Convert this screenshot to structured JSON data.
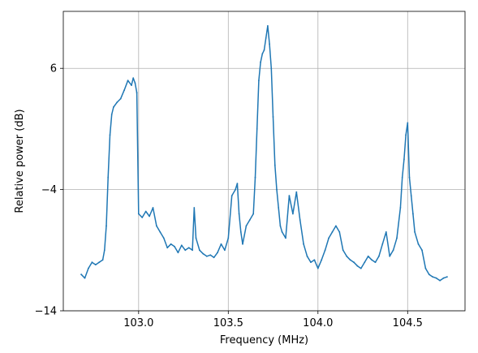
{
  "chart_data": {
    "type": "line",
    "title": "",
    "xlabel": "Frequency (MHz)",
    "ylabel": "Relative power (dB)",
    "xlim": [
      102.58,
      104.82
    ],
    "ylim": [
      -14,
      10.7
    ],
    "xticks": [
      103.0,
      103.5,
      104.0,
      104.5
    ],
    "xtick_labels": [
      "103.0",
      "103.5",
      "104.0",
      "104.5"
    ],
    "yticks": [
      -14,
      -4,
      6
    ],
    "ytick_labels": [
      "−14",
      "−4",
      "6"
    ],
    "grid": true,
    "series": [
      {
        "color": "#1f77b4",
        "x": [
          102.68,
          102.7,
          102.72,
          102.74,
          102.76,
          102.78,
          102.8,
          102.81,
          102.82,
          102.83,
          102.84,
          102.85,
          102.86,
          102.88,
          102.9,
          102.92,
          102.94,
          102.96,
          102.97,
          102.98,
          102.99,
          103.0,
          103.02,
          103.04,
          103.06,
          103.08,
          103.1,
          103.12,
          103.14,
          103.16,
          103.18,
          103.2,
          103.22,
          103.24,
          103.26,
          103.28,
          103.3,
          103.31,
          103.32,
          103.34,
          103.36,
          103.38,
          103.4,
          103.42,
          103.44,
          103.46,
          103.48,
          103.5,
          103.52,
          103.54,
          103.55,
          103.56,
          103.57,
          103.58,
          103.6,
          103.62,
          103.64,
          103.65,
          103.66,
          103.67,
          103.68,
          103.69,
          103.7,
          103.71,
          103.72,
          103.73,
          103.74,
          103.75,
          103.76,
          103.77,
          103.78,
          103.79,
          103.8,
          103.82,
          103.84,
          103.86,
          103.88,
          103.9,
          103.92,
          103.94,
          103.96,
          103.98,
          104.0,
          104.02,
          104.04,
          104.06,
          104.08,
          104.1,
          104.12,
          104.14,
          104.16,
          104.18,
          104.2,
          104.22,
          104.24,
          104.26,
          104.28,
          104.3,
          104.32,
          104.34,
          104.36,
          104.38,
          104.4,
          104.42,
          104.44,
          104.46,
          104.47,
          104.48,
          104.49,
          104.5,
          104.51,
          104.52,
          104.53,
          104.54,
          104.56,
          104.58,
          104.6,
          104.62,
          104.64,
          104.66,
          104.68,
          104.7,
          104.72
        ],
        "y": [
          -11.0,
          -11.3,
          -10.5,
          -10.0,
          -10.2,
          -10.0,
          -9.8,
          -9.0,
          -7.0,
          -3.0,
          0.5,
          2.2,
          2.8,
          3.2,
          3.5,
          4.2,
          5.0,
          4.6,
          5.2,
          4.8,
          4.0,
          -6.0,
          -6.3,
          -5.8,
          -6.2,
          -5.5,
          -7.0,
          -7.5,
          -8.0,
          -8.8,
          -8.5,
          -8.7,
          -9.2,
          -8.6,
          -9.0,
          -8.8,
          -9.0,
          -5.5,
          -8.0,
          -9.0,
          -9.3,
          -9.5,
          -9.4,
          -9.6,
          -9.2,
          -8.5,
          -9.0,
          -8.0,
          -4.5,
          -4.0,
          -3.5,
          -6.0,
          -7.5,
          -8.5,
          -7.0,
          -6.5,
          -6.0,
          -3.0,
          1.0,
          5.0,
          6.5,
          7.2,
          7.5,
          8.5,
          9.5,
          8.0,
          6.0,
          2.0,
          -2.0,
          -4.0,
          -5.5,
          -7.0,
          -7.5,
          -8.0,
          -4.5,
          -6.0,
          -4.2,
          -6.5,
          -8.5,
          -9.5,
          -10.0,
          -9.8,
          -10.5,
          -9.8,
          -9.0,
          -8.0,
          -7.5,
          -7.0,
          -7.5,
          -9.0,
          -9.5,
          -9.8,
          -10.0,
          -10.3,
          -10.5,
          -10.0,
          -9.5,
          -9.8,
          -10.0,
          -9.5,
          -8.5,
          -7.5,
          -9.5,
          -9.0,
          -8.0,
          -5.5,
          -3.0,
          -1.5,
          0.5,
          1.5,
          -3.0,
          -4.5,
          -6.0,
          -7.5,
          -8.5,
          -9.0,
          -10.5,
          -11.0,
          -11.2,
          -11.3,
          -11.5,
          -11.3,
          -11.2
        ]
      }
    ]
  }
}
